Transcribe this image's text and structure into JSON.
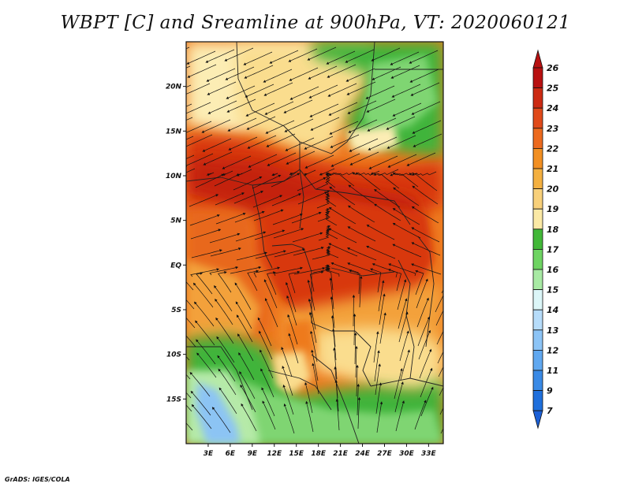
{
  "title": "WBPT [C] and Sreamline at 900hPa, VT: 2020060121",
  "credit": "GrADS: IGES/COLA",
  "map": {
    "lon_range": [
      0,
      35
    ],
    "lat_range": [
      -20,
      25
    ],
    "lat_ticks": [
      {
        "value": 20,
        "label": "20N"
      },
      {
        "value": 15,
        "label": "15N"
      },
      {
        "value": 10,
        "label": "10N"
      },
      {
        "value": 5,
        "label": "5N"
      },
      {
        "value": 0,
        "label": "EQ"
      },
      {
        "value": -5,
        "label": "5S"
      },
      {
        "value": -10,
        "label": "10S"
      },
      {
        "value": -15,
        "label": "15S"
      }
    ],
    "lon_ticks": [
      {
        "value": 3,
        "label": "3E"
      },
      {
        "value": 6,
        "label": "6E"
      },
      {
        "value": 9,
        "label": "9E"
      },
      {
        "value": 12,
        "label": "12E"
      },
      {
        "value": 15,
        "label": "15E"
      },
      {
        "value": 18,
        "label": "18E"
      },
      {
        "value": 21,
        "label": "21E"
      },
      {
        "value": 24,
        "label": "24E"
      },
      {
        "value": 27,
        "label": "27E"
      },
      {
        "value": 30,
        "label": "30E"
      },
      {
        "value": 33,
        "label": "33E"
      }
    ]
  },
  "colorbar": {
    "labels": [
      "26",
      "25",
      "24",
      "23",
      "22",
      "21",
      "20",
      "19",
      "18",
      "17",
      "16",
      "15",
      "14",
      "13",
      "12",
      "11",
      "9",
      "7"
    ],
    "colors": {
      "top_arrow": "#b81010",
      "bottom_arrow": "#1a5fd6",
      "boxes": [
        "#b81010",
        "#cc2a12",
        "#e04a1a",
        "#ec6a1e",
        "#f28f22",
        "#f4b040",
        "#f8d07a",
        "#fbe9a5",
        "#42b838",
        "#6ed462",
        "#a8eaa4",
        "#dcf6f8",
        "#b6dcfa",
        "#8cc4f6",
        "#60a8f0",
        "#3a8ae6",
        "#1f6fdc"
      ]
    }
  },
  "field_colors": {
    "ocean_warm": "#e8681e",
    "core": "#c4220f",
    "hot": "#d8380f",
    "warm": "#ee7a1f",
    "mild": "#f3a13a",
    "cool": "#fadd8e",
    "pale": "#fcedb4",
    "green": "#40b43a",
    "light_green": "#7fd572",
    "pale_green": "#b6eaa8",
    "blue": "#8cc4f4"
  }
}
